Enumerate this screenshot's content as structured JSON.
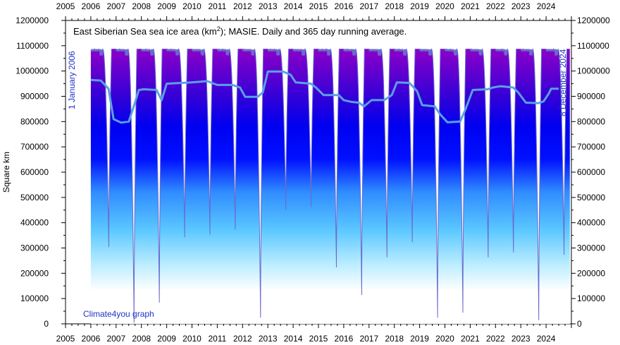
{
  "chart_data": {
    "type": "area",
    "title_main": "East Siberian Sea sea ice area (km",
    "title_sup": "2",
    "title_rest": "); MASIE. Daily and 365 day running average.",
    "ylabel": "Square km",
    "ylim": [
      0,
      1200000
    ],
    "xlim": [
      2005,
      2025
    ],
    "x_ticks": [
      "2005",
      "2006",
      "2007",
      "2008",
      "2009",
      "2010",
      "2011",
      "2012",
      "2013",
      "2014",
      "2015",
      "2016",
      "2017",
      "2018",
      "2019",
      "2020",
      "2021",
      "2022",
      "2023",
      "2024"
    ],
    "y_ticks": [
      "0",
      "100000",
      "200000",
      "300000",
      "400000",
      "500000",
      "600000",
      "700000",
      "800000",
      "900000",
      "1000000",
      "1100000",
      "1200000"
    ],
    "start_label": "1 January 2006",
    "end_label": "8 December 2024",
    "credit": "Climate4you graph",
    "gradient_colors": [
      "#ffffff",
      "#b0eaff",
      "#2fa0ff",
      "#0000ff",
      "#1c00dc",
      "#8a00c8"
    ],
    "daily_line_color": "#6a6ad0",
    "running_avg_color": "#5aa0e6",
    "annual_minima": [
      {
        "year": 2006,
        "min": 300000
      },
      {
        "year": 2007,
        "min": 0
      },
      {
        "year": 2008,
        "min": 80000
      },
      {
        "year": 2009,
        "min": 340000
      },
      {
        "year": 2010,
        "min": 350000
      },
      {
        "year": 2011,
        "min": 370000
      },
      {
        "year": 2012,
        "min": 20000
      },
      {
        "year": 2013,
        "min": 450000
      },
      {
        "year": 2014,
        "min": 460000
      },
      {
        "year": 2015,
        "min": 220000
      },
      {
        "year": 2016,
        "min": 110000
      },
      {
        "year": 2017,
        "min": 260000
      },
      {
        "year": 2018,
        "min": 320000
      },
      {
        "year": 2019,
        "min": 20000
      },
      {
        "year": 2020,
        "min": 40000
      },
      {
        "year": 2021,
        "min": 260000
      },
      {
        "year": 2022,
        "min": 280000
      },
      {
        "year": 2023,
        "min": 10000
      },
      {
        "year": 2024,
        "min": 270000
      }
    ],
    "winter_max": 1087000,
    "running_average": {
      "x": [
        2006.0,
        2006.4,
        2006.7,
        2006.9,
        2007.2,
        2007.5,
        2007.7,
        2007.9,
        2008.1,
        2008.6,
        2008.8,
        2009.0,
        2009.6,
        2010.0,
        2010.6,
        2011.0,
        2011.6,
        2011.9,
        2012.1,
        2012.6,
        2012.8,
        2013.0,
        2013.6,
        2013.9,
        2014.1,
        2014.7,
        2014.9,
        2015.2,
        2015.8,
        2016.0,
        2016.3,
        2016.6,
        2016.8,
        2017.1,
        2017.6,
        2017.9,
        2018.1,
        2018.6,
        2018.9,
        2019.1,
        2019.6,
        2019.8,
        2020.1,
        2020.6,
        2020.8,
        2021.1,
        2021.7,
        2021.9,
        2022.2,
        2022.7,
        2022.9,
        2023.2,
        2023.7,
        2023.9,
        2024.1,
        2024.2,
        2024.5
      ],
      "y": [
        965000,
        962000,
        930000,
        810000,
        796000,
        800000,
        860000,
        925000,
        928000,
        925000,
        885000,
        950000,
        953000,
        955000,
        960000,
        945000,
        945000,
        935000,
        898000,
        898000,
        915000,
        998000,
        998000,
        985000,
        955000,
        950000,
        935000,
        905000,
        905000,
        885000,
        878000,
        875000,
        860000,
        885000,
        885000,
        905000,
        955000,
        953000,
        920000,
        865000,
        860000,
        830000,
        797000,
        800000,
        845000,
        925000,
        928000,
        935000,
        940000,
        935000,
        915000,
        875000,
        873000,
        880000,
        910000,
        930000,
        930000
      ]
    }
  }
}
